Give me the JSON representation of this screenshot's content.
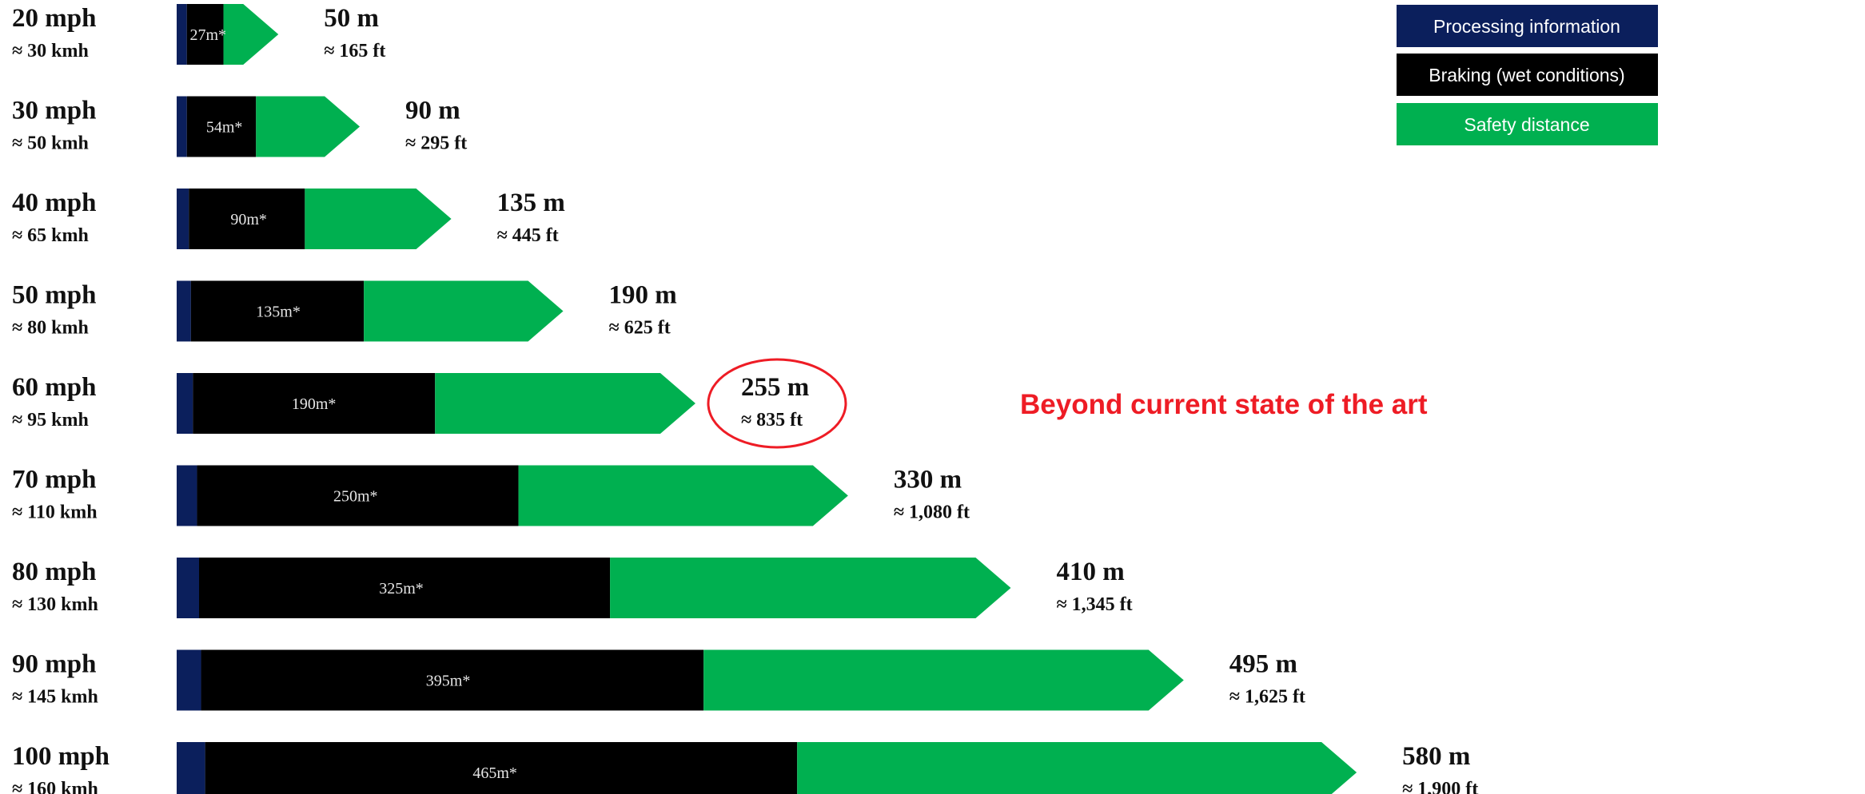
{
  "colors": {
    "processing": "#0b1f5c",
    "braking": "#000000",
    "safety": "#00b050",
    "callout": "#ee1c25"
  },
  "legend": [
    {
      "label": "Processing information",
      "color": "#0b1f5c"
    },
    {
      "label": "Braking (wet conditions)",
      "color": "#000000"
    },
    {
      "label": "Safety distance",
      "color": "#00b050"
    }
  ],
  "callout": {
    "highlighted_row": 4,
    "text": "Beyond current state of the art"
  },
  "chart_data": {
    "type": "bar",
    "orientation": "horizontal",
    "stacked": true,
    "title": "",
    "xlabel": "",
    "ylabel": "",
    "xlim": [
      0,
      580
    ],
    "grid": false,
    "legend_position": "top-right",
    "categories": [
      "20 mph",
      "30 mph",
      "40 mph",
      "50 mph",
      "60 mph",
      "70 mph",
      "80 mph",
      "90 mph",
      "100 mph"
    ],
    "speed_kmh": [
      "≈ 30 kmh",
      "≈ 50 kmh",
      "≈ 65 kmh",
      "≈ 80 kmh",
      "≈ 95 kmh",
      "≈ 110 kmh",
      "≈ 130 kmh",
      "≈ 145 kmh",
      "≈ 160 kmh"
    ],
    "series": [
      {
        "name": "Processing information",
        "values": [
          5,
          5,
          6,
          7,
          8,
          10,
          11,
          12,
          14
        ]
      },
      {
        "name": "Braking (wet conditions)",
        "values": [
          18,
          34,
          57,
          85,
          119,
          158,
          202,
          247,
          291
        ]
      },
      {
        "name": "Safety distance",
        "values": [
          27,
          51,
          72,
          98,
          128,
          162,
          197,
          236,
          275
        ]
      }
    ],
    "bar_labels": [
      "27m*",
      "54m*",
      "90m*",
      "135m*",
      "190m*",
      "250m*",
      "325m*",
      "395m*",
      "465m*"
    ],
    "totals": [
      50,
      90,
      135,
      190,
      255,
      330,
      410,
      495,
      580
    ],
    "total_labels": [
      "50 m",
      "90 m",
      "135 m",
      "190 m",
      "255 m",
      "330 m",
      "410 m",
      "495 m",
      "580 m"
    ],
    "total_ft_labels": [
      "≈ 165 ft",
      "≈ 295 ft",
      "≈ 445 ft",
      "≈ 625 ft",
      "≈ 835 ft",
      "≈ 1,080 ft",
      "≈ 1,345 ft",
      "≈ 1,625 ft",
      "≈ 1,900 ft"
    ]
  }
}
